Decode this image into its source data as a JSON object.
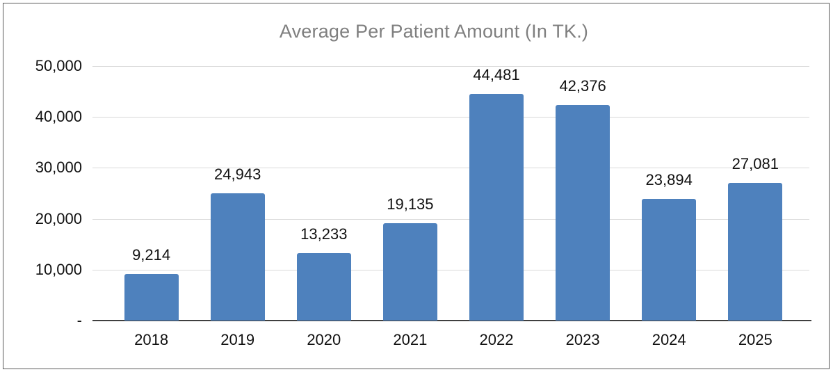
{
  "chart_data": {
    "type": "bar",
    "title": "Average Per Patient Amount (In TK.)",
    "categories": [
      "2018",
      "2019",
      "2020",
      "2021",
      "2022",
      "2023",
      "2024",
      "2025"
    ],
    "values": [
      9214,
      24943,
      13233,
      19135,
      44481,
      42376,
      23894,
      27081
    ],
    "value_labels": [
      "9,214",
      "24,943",
      "13,233",
      "19,135",
      "44,481",
      "42,376",
      "23,894",
      "27,081"
    ],
    "xlabel": "",
    "ylabel": "",
    "ylim": [
      0,
      50000
    ],
    "y_tick_interval": 10000,
    "y_tick_labels": [
      "50,000",
      "40,000",
      "30,000",
      "20,000",
      "10,000",
      "-"
    ],
    "grid": "horizontal",
    "legend_position": "none",
    "colors": {
      "bar": "#4E81BD",
      "gridline": "#D9D9D9",
      "axis_line": "#3F3F3F",
      "title_text": "#7F7F7F",
      "label_text": "#111111",
      "frame_border": "#595959",
      "background": "#FFFFFF"
    }
  }
}
